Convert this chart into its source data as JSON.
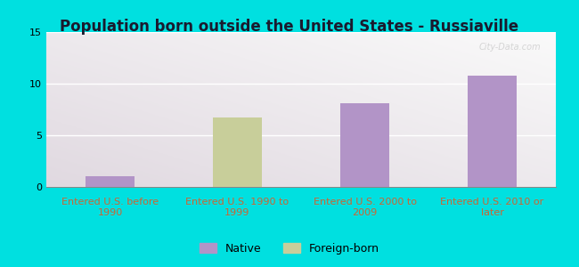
{
  "title": "Population born outside the United States - Russiaville",
  "categories": [
    "Entered U.S. before\n1990",
    "Entered U.S. 1990 to\n1999",
    "Entered U.S. 2000 to\n2009",
    "Entered U.S. 2010 or\nlater"
  ],
  "values": [
    1.0,
    6.7,
    8.1,
    10.8
  ],
  "bar_colors": [
    "#b294c7",
    "#c8ce9a",
    "#b294c7",
    "#b294c7"
  ],
  "ylim": [
    0,
    15
  ],
  "yticks": [
    0,
    5,
    10,
    15
  ],
  "legend_labels": [
    "Native",
    "Foreign-born"
  ],
  "legend_colors": [
    "#b294c7",
    "#c8ce9a"
  ],
  "background_outer": "#00e0e0",
  "title_fontsize": 12,
  "tick_label_fontsize": 8,
  "tick_color": "#cc6633",
  "axis_label_color": "#cc6633",
  "watermark": "City-Data.com"
}
